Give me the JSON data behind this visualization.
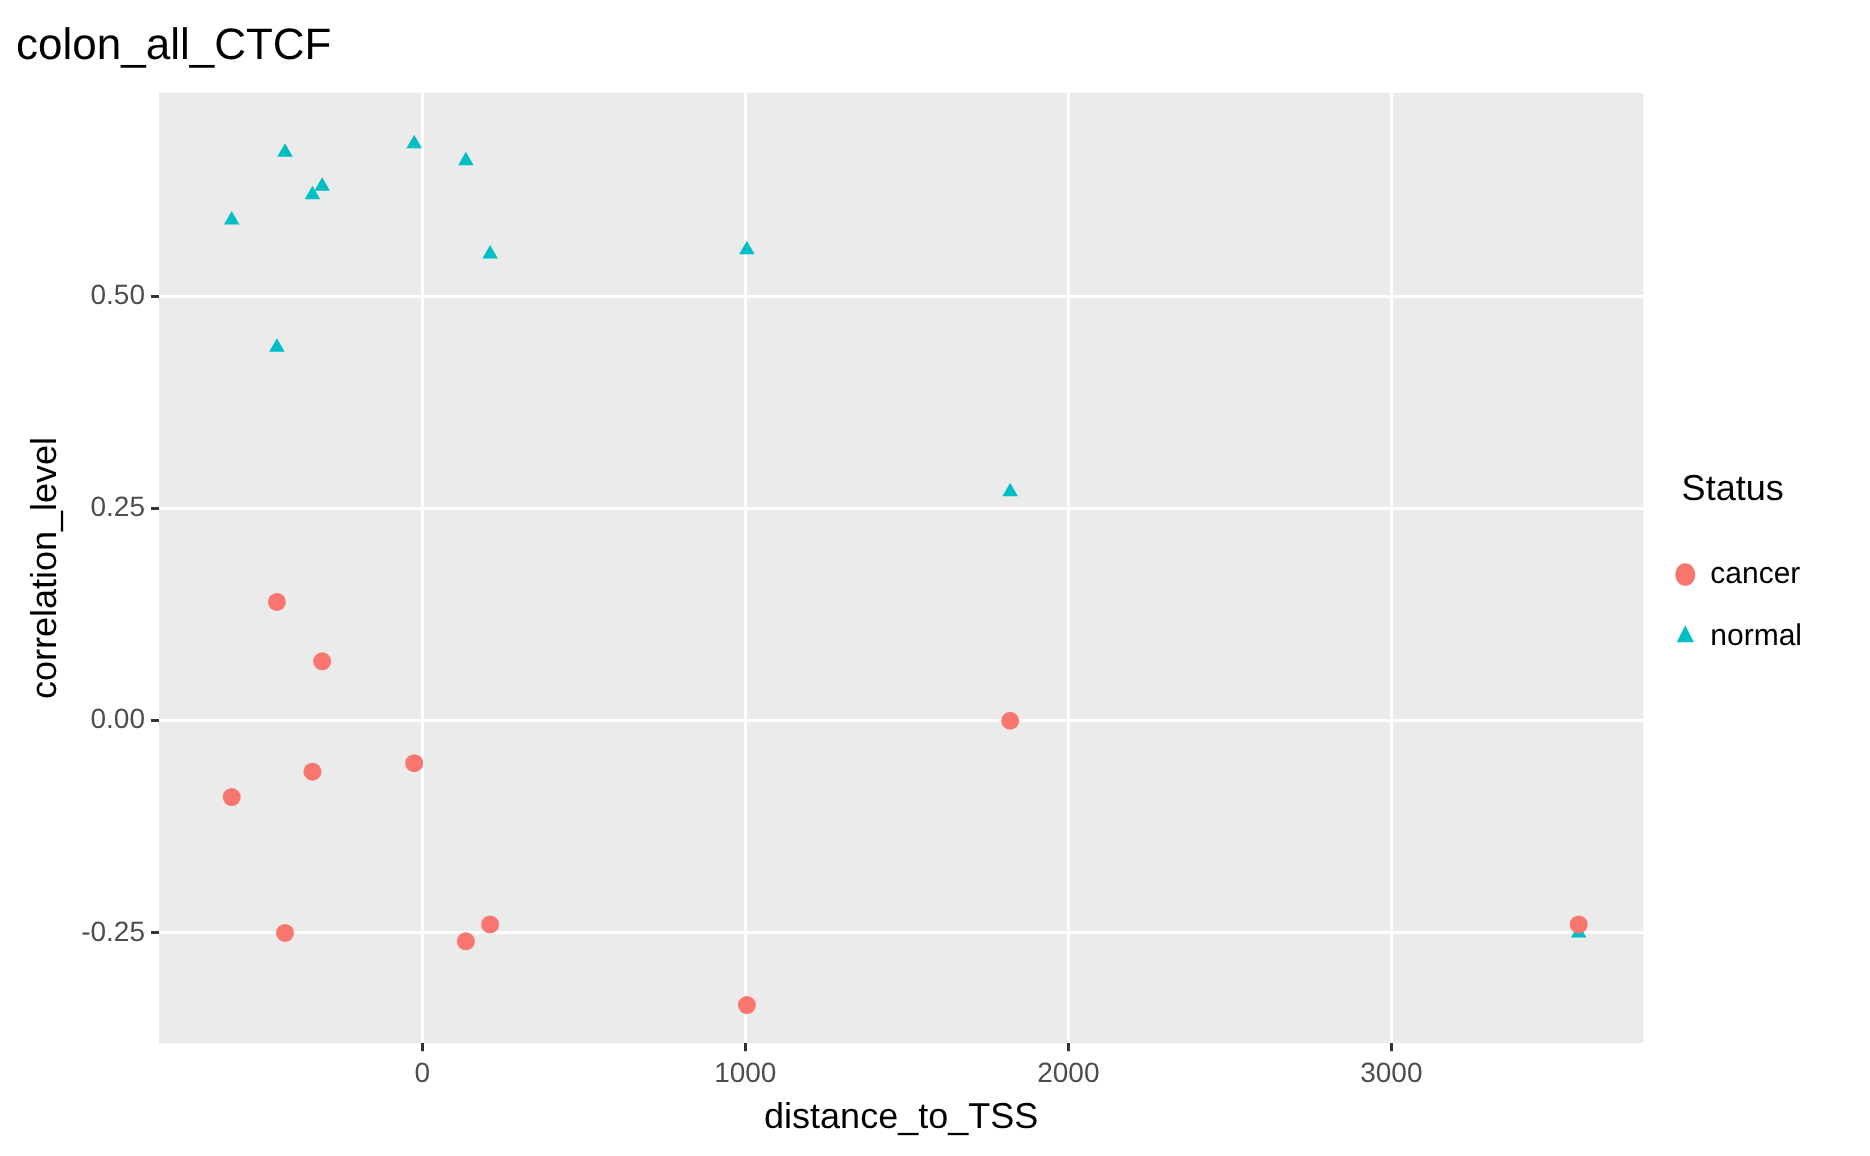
{
  "chart_data": {
    "type": "scatter",
    "title": "colon_all_CTCF",
    "xlabel": "distance_to_TSS",
    "ylabel": "correlation_level",
    "legend_title": "Status",
    "legend": "right",
    "grid": true,
    "xlim": [
      -815,
      3780
    ],
    "ylim": [
      -0.38,
      0.74
    ],
    "xticks": [
      0,
      1000,
      2000,
      3000
    ],
    "yticks": [
      {
        "value": -0.25,
        "label": "-0.25"
      },
      {
        "value": 0,
        "label": "0.00"
      },
      {
        "value": 0.25,
        "label": "0.25"
      },
      {
        "value": 0.5,
        "label": "0.50"
      }
    ],
    "series": [
      {
        "name": "cancer",
        "color": "#f8766d",
        "marker": "circle",
        "x": [
          -590,
          -450,
          -425,
          -340,
          -310,
          -25,
          135,
          210,
          1005,
          1820,
          3580
        ],
        "values": [
          -0.09,
          0.14,
          -0.25,
          -0.06,
          0.07,
          -0.05,
          -0.26,
          -0.24,
          -0.335,
          0,
          -0.24
        ]
      },
      {
        "name": "normal",
        "color": "#00bfc4",
        "marker": "triangle",
        "x": [
          -590,
          -450,
          -425,
          -340,
          -310,
          -25,
          135,
          210,
          1005,
          1820,
          3580
        ],
        "values": [
          0.59,
          0.44,
          0.67,
          0.62,
          0.63,
          0.68,
          0.66,
          0.55,
          0.555,
          0.27,
          -0.25
        ]
      }
    ]
  }
}
